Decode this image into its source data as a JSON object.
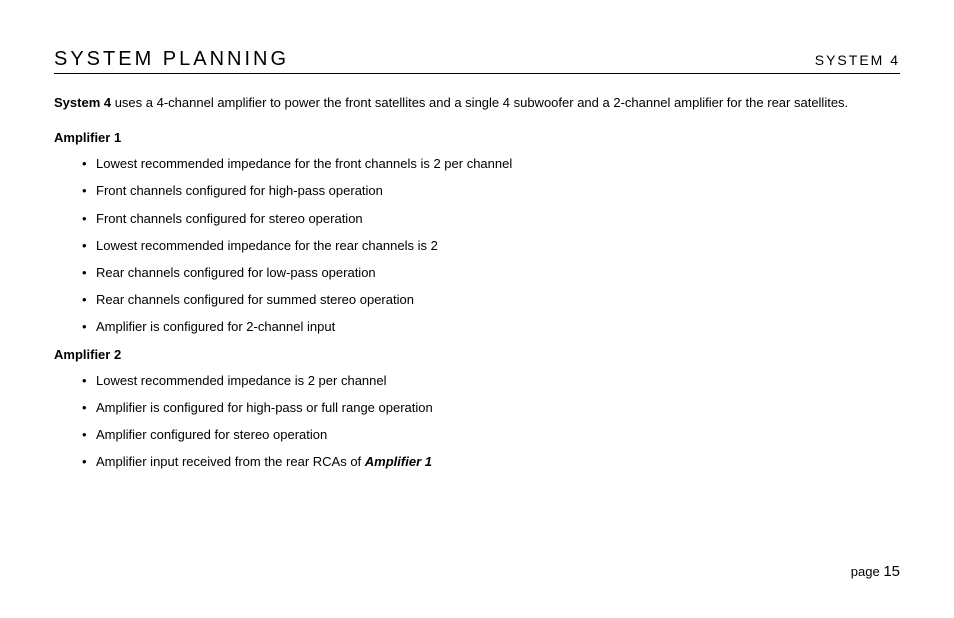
{
  "header": {
    "left": "SYSTEM  PLANNING",
    "right": "SYSTEM 4"
  },
  "intro": {
    "lead": "System 4",
    "rest": " uses a 4-channel amplifier to power the front satellites and a single 4    subwoofer and a 2-channel amplifier for the rear satellites."
  },
  "sections": [
    {
      "title": "Amplifier 1",
      "items": [
        "Lowest recommended impedance for the front channels is 2    per channel",
        "Front channels configured for high-pass operation",
        "Front channels configured for stereo operation",
        "Lowest recommended impedance for the rear channels is 2",
        "Rear channels configured for low-pass operation",
        "Rear channels configured for summed stereo operation",
        "Amplifier is configured for 2-channel input"
      ]
    },
    {
      "title": "Amplifier 2",
      "items": [
        "Lowest recommended impedance is 2    per channel",
        "Amplifier is configured for high-pass or full range operation",
        "Amplifier configured for stereo operation",
        "Amplifier input received from the rear RCAs of "
      ],
      "trailing_ref": "Amplifier 1"
    }
  ],
  "footer": {
    "label": "page ",
    "number": "15"
  }
}
